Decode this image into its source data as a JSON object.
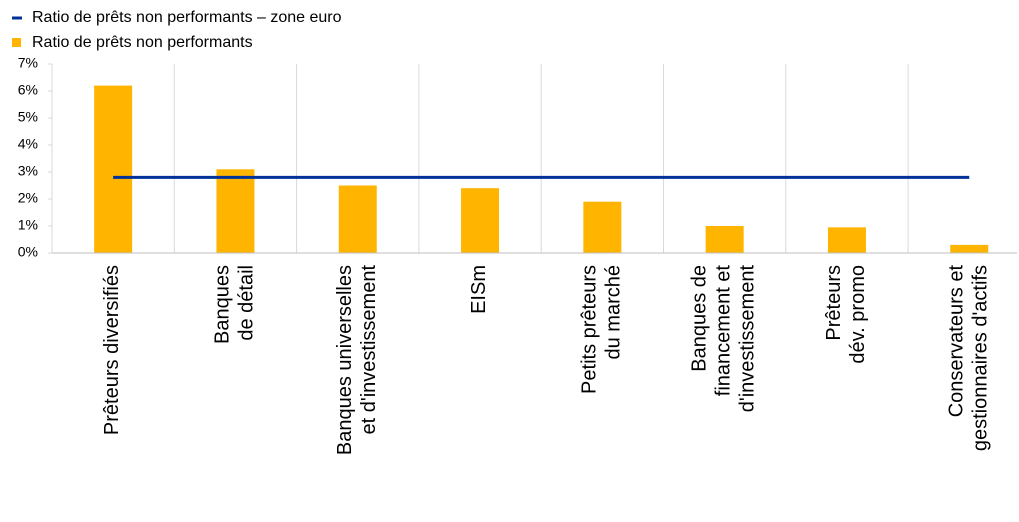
{
  "chart_data": {
    "type": "bar",
    "categories": [
      "Prêteurs diversifiés",
      "Banques\nde détail",
      "Banques universelles\net d'investissement",
      "EISm",
      "Petits prêteurs\ndu marché",
      "Banques de\nfinancement et\nd'investissement",
      "Prêteurs\ndév. promo",
      "Conservateurs et\ngestionnaires d'actifs"
    ],
    "series": [
      {
        "name": "Ratio de prêts non performants – zone euro",
        "type": "line",
        "color": "#003299",
        "values": [
          2.8,
          2.8,
          2.8,
          2.8,
          2.8,
          2.8,
          2.8,
          2.8
        ]
      },
      {
        "name": "Ratio de prêts non performants",
        "type": "bar",
        "color": "#ffb400",
        "values": [
          6.2,
          3.1,
          2.5,
          2.4,
          1.9,
          1.0,
          0.95,
          0.3
        ]
      }
    ],
    "ylim": [
      0,
      7
    ],
    "yticks": [
      {
        "value": 0,
        "label": "0%"
      },
      {
        "value": 1,
        "label": "1%"
      },
      {
        "value": 2,
        "label": "2%"
      },
      {
        "value": 3,
        "label": "3%"
      },
      {
        "value": 4,
        "label": "4%"
      },
      {
        "value": 5,
        "label": "5%"
      },
      {
        "value": 6,
        "label": "6%"
      },
      {
        "value": 7,
        "label": "7%"
      }
    ],
    "grid": "vertical",
    "legend": "top-left"
  }
}
